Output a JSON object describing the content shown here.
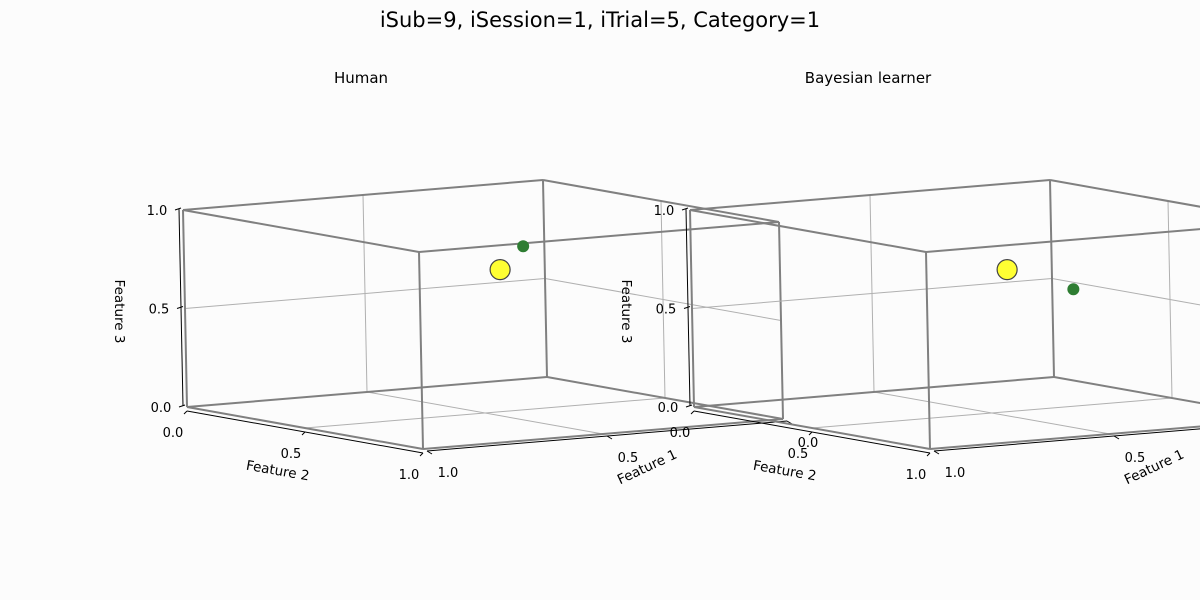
{
  "figure": {
    "suptitle": "iSub=9, iSession=1, iTrial=5, Category=1"
  },
  "colors": {
    "prototype": "#ffff33",
    "point": "#2e7d32",
    "box": "#808080"
  },
  "chart_data": [
    {
      "type": "scatter3d",
      "title": "Human",
      "xlabel": "Feature 1",
      "ylabel": "Feature 2",
      "zlabel": "Feature 3",
      "xlim": [
        0,
        1
      ],
      "ylim": [
        0,
        1
      ],
      "zlim": [
        0,
        1
      ],
      "ticks": [
        "0.0",
        "0.5",
        "1.0"
      ],
      "grid": true,
      "points": [
        {
          "role": "prototype",
          "x": 0.45,
          "y": 0.5,
          "z": 0.72
        },
        {
          "role": "response",
          "x": 0.45,
          "y": 0.6,
          "z": 0.86
        }
      ]
    },
    {
      "type": "scatter3d",
      "title": "Bayesian learner",
      "xlabel": "Feature 1",
      "ylabel": "Feature 2",
      "zlabel": "Feature 3",
      "xlim": [
        0,
        1
      ],
      "ylim": [
        0,
        1
      ],
      "zlim": [
        0,
        1
      ],
      "ticks": [
        "0.0",
        "0.5",
        "1.0"
      ],
      "grid": true,
      "points": [
        {
          "role": "prototype",
          "x": 0.45,
          "y": 0.5,
          "z": 0.72
        },
        {
          "role": "response",
          "x": 0.45,
          "y": 0.78,
          "z": 0.68
        }
      ]
    }
  ]
}
